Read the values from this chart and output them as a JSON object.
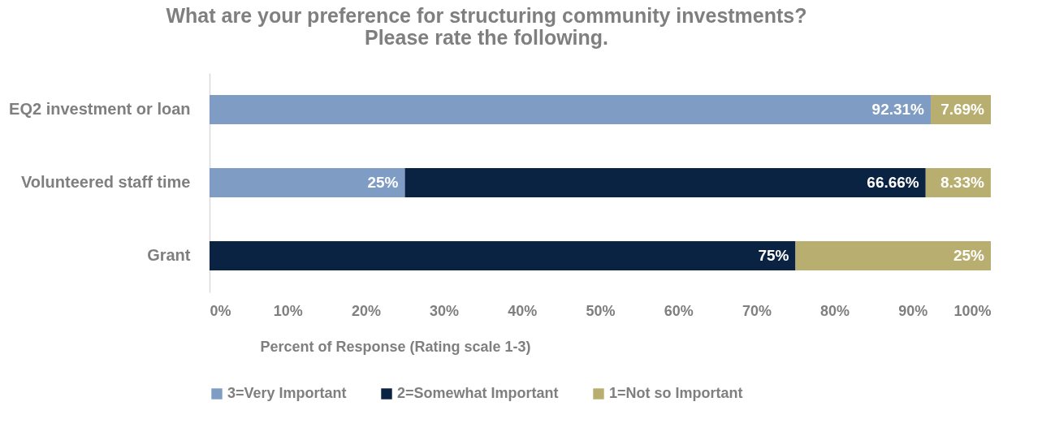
{
  "chart_data": {
    "type": "bar",
    "orientation": "horizontal",
    "stacked": true,
    "title": [
      "What are your preference for structuring community investments?",
      "Please rate the following."
    ],
    "xlabel": "Percent of Response (Rating scale 1-3)",
    "categories": [
      "EQ2 investment or loan",
      "Volunteered staff time",
      "Grant"
    ],
    "series": [
      {
        "name": "3=Very Important",
        "color": "#7f9cc4",
        "values": [
          92.31,
          25,
          null
        ],
        "value_labels": [
          "92.31%",
          "25%",
          null
        ]
      },
      {
        "name": "2=Somewhat Important",
        "color": "#0b2342",
        "values": [
          null,
          66.66,
          75
        ],
        "value_labels": [
          null,
          "66.66%",
          "75%"
        ]
      },
      {
        "name": "1=Not so Important",
        "color": "#b8ae6f",
        "values": [
          7.69,
          8.33,
          25
        ],
        "value_labels": [
          "7.69%",
          "8.33%",
          "25%"
        ]
      }
    ],
    "xlim": [
      0,
      100
    ],
    "xticks": [
      {
        "value": 0,
        "label": "0%"
      },
      {
        "value": 10,
        "label": "10%"
      },
      {
        "value": 20,
        "label": "20%"
      },
      {
        "value": 30,
        "label": "30%"
      },
      {
        "value": 40,
        "label": "40%"
      },
      {
        "value": 50,
        "label": "50%"
      },
      {
        "value": 60,
        "label": "60%"
      },
      {
        "value": 70,
        "label": "70%"
      },
      {
        "value": 80,
        "label": "80%"
      },
      {
        "value": 90,
        "label": "90%"
      },
      {
        "value": 100,
        "label": "100%"
      }
    ],
    "grid": false,
    "legend": "bottom"
  }
}
